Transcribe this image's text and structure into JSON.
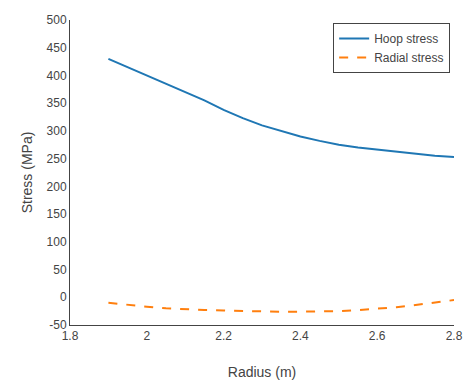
{
  "chart_data": {
    "type": "line",
    "xlabel": "Radius (m)",
    "ylabel": "Stress (MPa)",
    "xlim": [
      1.8,
      2.8
    ],
    "ylim": [
      -50,
      500
    ],
    "xticks": [
      1.8,
      2.0,
      2.2,
      2.4,
      2.6,
      2.8
    ],
    "yticks": [
      -50,
      0,
      50,
      100,
      150,
      200,
      250,
      300,
      350,
      400,
      450,
      500
    ],
    "x": [
      1.9,
      1.95,
      2.0,
      2.05,
      2.1,
      2.15,
      2.2,
      2.25,
      2.3,
      2.35,
      2.4,
      2.45,
      2.5,
      2.55,
      2.6,
      2.65,
      2.7,
      2.75,
      2.8
    ],
    "series": [
      {
        "name": "Hoop stress",
        "line_style": "solid",
        "values": [
          430,
          415,
          400,
          385,
          370,
          355,
          338,
          323,
          310,
          300,
          290,
          282,
          275,
          270,
          266,
          262,
          258,
          255,
          253
        ]
      },
      {
        "name": "Radial stress",
        "line_style": "dashed",
        "values": [
          -10,
          -14,
          -17,
          -20,
          -22,
          -23,
          -24,
          -25,
          -25.5,
          -26,
          -26,
          -25.5,
          -25,
          -23,
          -21,
          -18,
          -14,
          -10,
          -5
        ]
      }
    ],
    "legend": "upper right",
    "grid": false
  }
}
